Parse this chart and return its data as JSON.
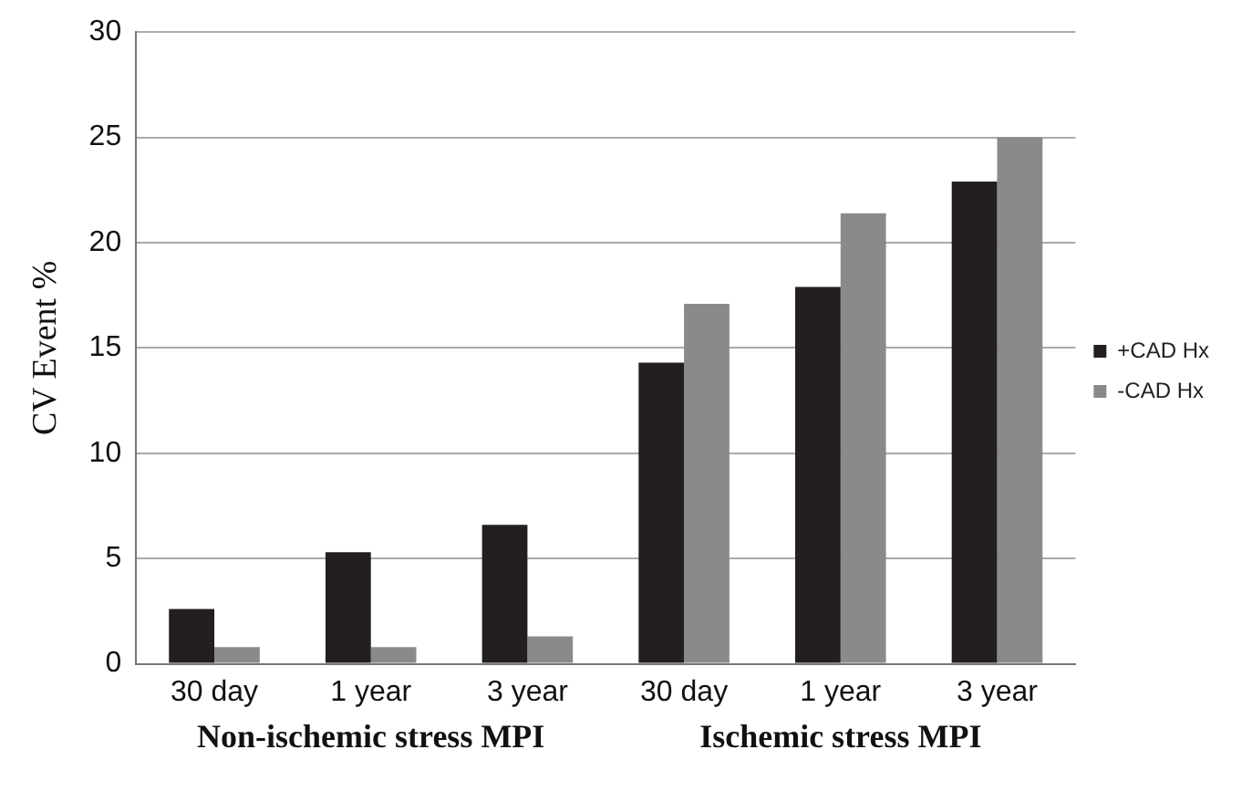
{
  "chart_data": {
    "type": "bar",
    "ylabel": "CV Event %",
    "categories": [
      "30 day",
      "1 year",
      "3 year",
      "30 day",
      "1 year",
      "3 year"
    ],
    "series": [
      {
        "name": "+CAD Hx",
        "color": "#231f20",
        "values": [
          2.6,
          5.3,
          6.6,
          14.3,
          17.9,
          22.9
        ]
      },
      {
        "name": "-CAD Hx",
        "color": "#8a8a8a",
        "values": [
          0.8,
          0.8,
          1.3,
          17.1,
          21.4,
          25.0
        ]
      }
    ],
    "ylim": [
      0,
      30
    ],
    "yticks": [
      0,
      5,
      10,
      15,
      20,
      25,
      30
    ],
    "grid": "y",
    "legend": "right",
    "annotations": [
      "Non-ischemic stress MPI",
      "Ischemic stress MPI"
    ]
  }
}
